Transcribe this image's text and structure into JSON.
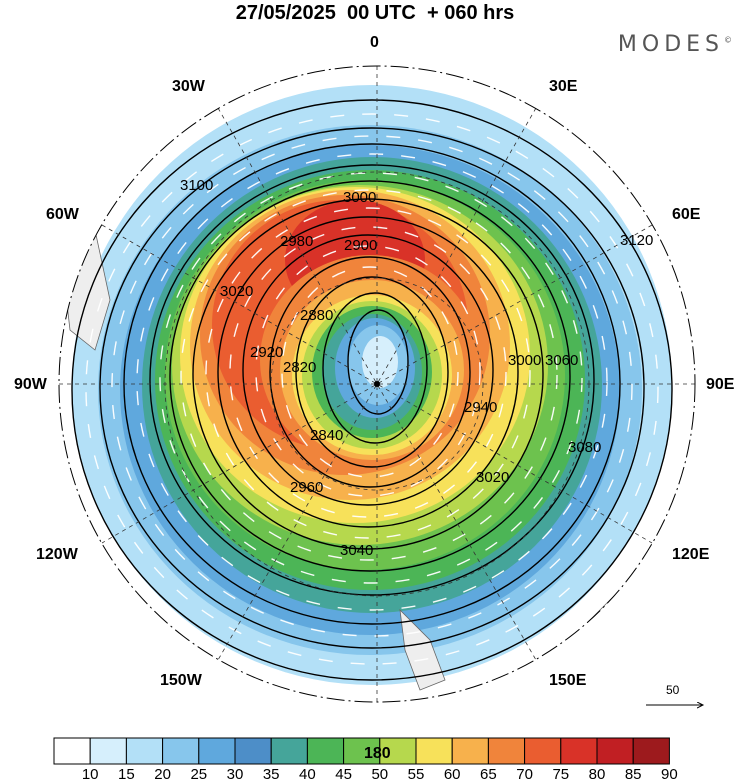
{
  "title": "27/05/2025  00 UTC  + 060 hrs",
  "brand": "MODES",
  "brand_mark": "©",
  "longitude_labels": {
    "top": "0",
    "bottom": "180",
    "left": "90W",
    "right": "90E",
    "upper_left": "30W",
    "upper_right": "30E",
    "mid_upper_left": "60W",
    "mid_upper_right": "60E",
    "mid_lower_left": "120W",
    "mid_lower_right": "120E",
    "lower_left": "150W",
    "lower_right": "150E"
  },
  "reference_vector": "50",
  "contour_labels": [
    "3000",
    "2980",
    "2900",
    "2880",
    "2920",
    "3020",
    "3040",
    "3060",
    "3080",
    "3100",
    "3120",
    "2960",
    "2940",
    "2840",
    "2820",
    "3020",
    "3000"
  ],
  "colorbar": {
    "labels": [
      "10",
      "15",
      "20",
      "25",
      "30",
      "35",
      "40",
      "45",
      "50",
      "55",
      "60",
      "65",
      "70",
      "75",
      "80",
      "85",
      "90"
    ],
    "colors": [
      "#ffffff",
      "#d6effc",
      "#b3e0f7",
      "#87c6ec",
      "#5fa8dd",
      "#4d8ec8",
      "#45a59a",
      "#4cb556",
      "#6dc24e",
      "#b6d84d",
      "#f7e15a",
      "#f7b14c",
      "#f0843b",
      "#ea5d30",
      "#d93228",
      "#c11f23",
      "#9d1a1d"
    ]
  }
}
